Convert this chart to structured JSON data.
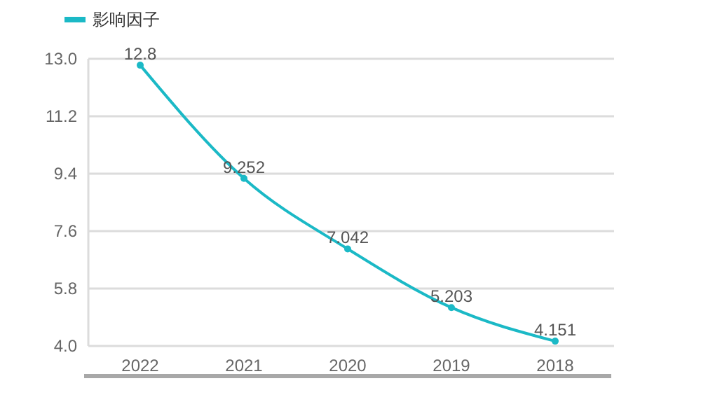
{
  "chart_data": {
    "type": "line",
    "categories": [
      "2022",
      "2021",
      "2020",
      "2019",
      "2018"
    ],
    "series": [
      {
        "name": "影响因子",
        "color": "#1bb9c6",
        "values": [
          12.8,
          9.252,
          7.042,
          5.203,
          4.151
        ]
      }
    ],
    "ylim": [
      4.0,
      13.0
    ],
    "yticks": [
      {
        "value": 4,
        "label": "4.0"
      },
      {
        "value": 5.8,
        "label": "5.8"
      },
      {
        "value": 7.6,
        "label": "7.6"
      },
      {
        "value": 9.4,
        "label": "9.4"
      },
      {
        "value": 11.2,
        "label": "11.2"
      },
      {
        "value": 13,
        "label": "13.0"
      }
    ],
    "grid": "y",
    "legend": "top left",
    "marker": "circle",
    "line_style": "solid",
    "data_labels": true
  }
}
